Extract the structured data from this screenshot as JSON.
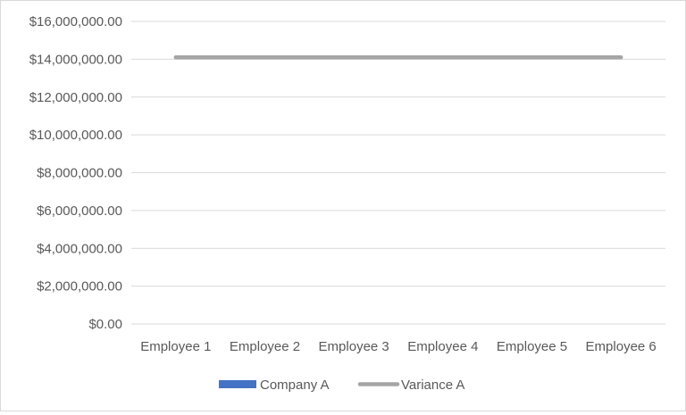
{
  "chart_data": {
    "type": "bar",
    "categories": [
      "Employee 1",
      "Employee 2",
      "Employee 3",
      "Employee 4",
      "Employee 5",
      "Employee 6"
    ],
    "series": [
      {
        "name": "Company A",
        "kind": "bar",
        "color": "#4472c4",
        "values": [
          0,
          0,
          0,
          0,
          0,
          0
        ]
      },
      {
        "name": "Variance A",
        "kind": "line",
        "color": "#a5a5a5",
        "values": [
          14100000,
          14100000,
          14100000,
          14100000,
          14100000,
          14100000
        ]
      }
    ],
    "y_ticks": [
      "$0.00",
      "$2,000,000.00",
      "$4,000,000.00",
      "$6,000,000.00",
      "$8,000,000.00",
      "$10,000,000.00",
      "$12,000,000.00",
      "$14,000,000.00",
      "$16,000,000.00"
    ],
    "ylim": [
      0,
      16000000
    ],
    "y_step": 2000000,
    "title": "",
    "xlabel": "",
    "ylabel": "",
    "grid": true,
    "legend_position": "bottom"
  }
}
